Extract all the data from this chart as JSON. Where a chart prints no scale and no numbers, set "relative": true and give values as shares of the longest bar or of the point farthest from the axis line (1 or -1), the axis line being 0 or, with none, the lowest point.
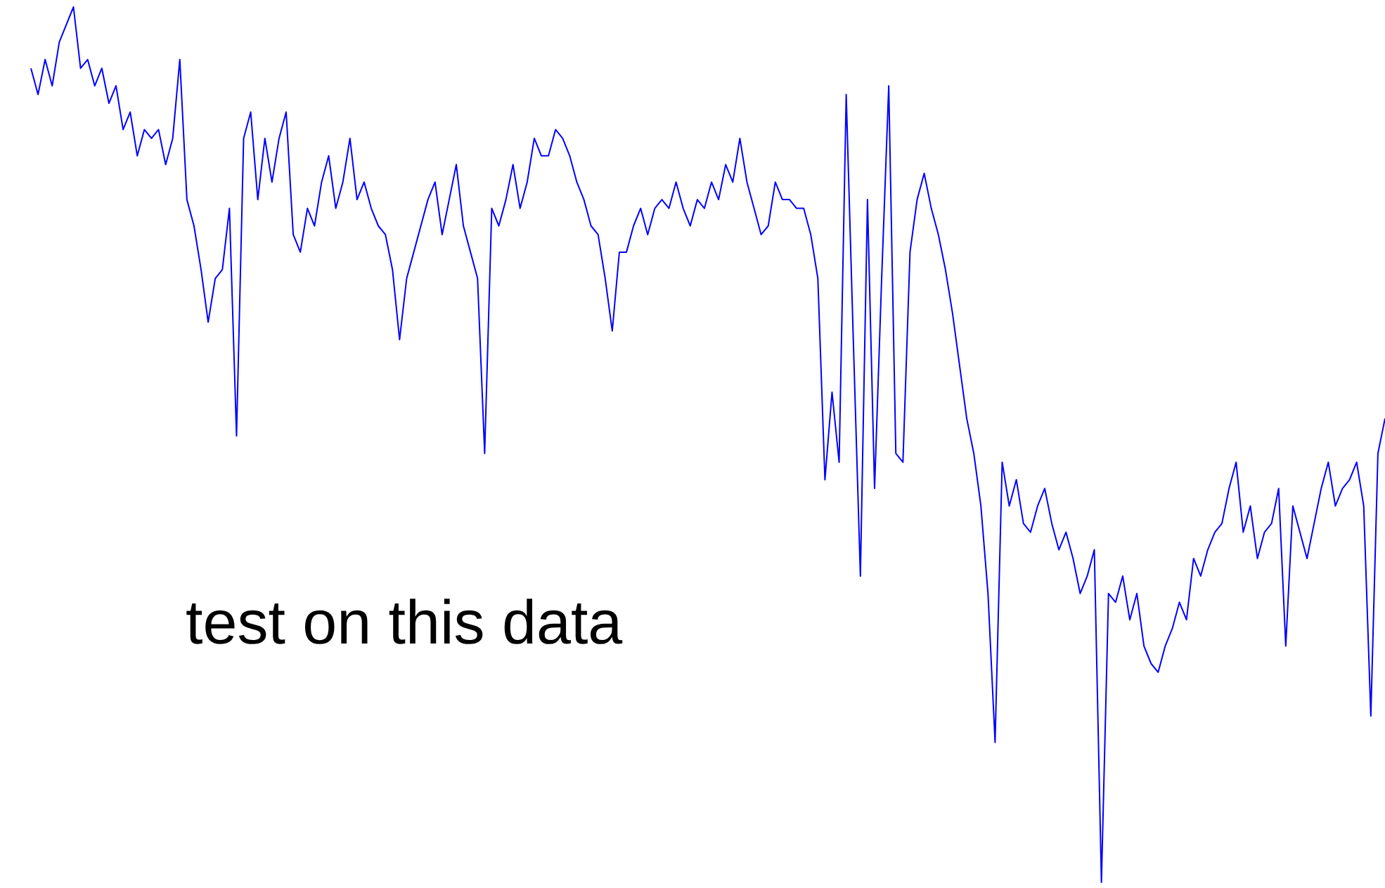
{
  "chart_data": {
    "type": "line",
    "relative": true,
    "annotations": [
      "test on this data"
    ],
    "categories": [
      null,
      null,
      null,
      null,
      null,
      null,
      null,
      null,
      null,
      null,
      null,
      null,
      null,
      null,
      null,
      null,
      null,
      null,
      null,
      null,
      null,
      null,
      null,
      null,
      null,
      null,
      null,
      null,
      null,
      null,
      null,
      null,
      null,
      null,
      null,
      null,
      null,
      null,
      null,
      null,
      null,
      null,
      null,
      null,
      null,
      null,
      null,
      null,
      null,
      null,
      null,
      null,
      null,
      null,
      null,
      null,
      null,
      null,
      null,
      null,
      null,
      null,
      null,
      null,
      null,
      null,
      null,
      null,
      null,
      null,
      null,
      null,
      null,
      null,
      null,
      null,
      null,
      null,
      null,
      null,
      null,
      null,
      null,
      null,
      null,
      null,
      null,
      null,
      null,
      null,
      null,
      null,
      null,
      null,
      null,
      null,
      null,
      null,
      null,
      null,
      null,
      null,
      null,
      null,
      null,
      null,
      null,
      null,
      null,
      null,
      null,
      null,
      null,
      null,
      null,
      null,
      null,
      null,
      null,
      null,
      null,
      null,
      null,
      null,
      null,
      null,
      null,
      null,
      null,
      null,
      null,
      null,
      null,
      null,
      null,
      null,
      null,
      null,
      null,
      null,
      null,
      null,
      null,
      null,
      null,
      null,
      null,
      null,
      null,
      null,
      null,
      null,
      null,
      null,
      null,
      null,
      null,
      null,
      null,
      null,
      null,
      null,
      null,
      null,
      null,
      null,
      null,
      null,
      null,
      null,
      null,
      null,
      null,
      null,
      null,
      null,
      null,
      null,
      null,
      null,
      null,
      null,
      null,
      null,
      null,
      null,
      null,
      null,
      null,
      null,
      null,
      null
    ],
    "series": [
      {
        "color": "#0000ff",
        "values": [
          0.93,
          0.9,
          0.94,
          0.91,
          0.96,
          0.98,
          1.0,
          0.93,
          0.94,
          0.91,
          0.93,
          0.89,
          0.91,
          0.86,
          0.88,
          0.83,
          0.86,
          0.85,
          0.86,
          0.82,
          0.85,
          0.94,
          0.78,
          0.75,
          0.7,
          0.64,
          0.69,
          0.7,
          0.77,
          0.51,
          0.85,
          0.88,
          0.78,
          0.85,
          0.8,
          0.85,
          0.88,
          0.74,
          0.72,
          0.77,
          0.75,
          0.8,
          0.83,
          0.77,
          0.8,
          0.85,
          0.78,
          0.8,
          0.77,
          0.75,
          0.74,
          0.7,
          0.62,
          0.69,
          0.72,
          0.75,
          0.78,
          0.8,
          0.74,
          0.78,
          0.82,
          0.75,
          0.72,
          0.69,
          0.49,
          0.77,
          0.75,
          0.78,
          0.82,
          0.77,
          0.8,
          0.85,
          0.83,
          0.83,
          0.86,
          0.85,
          0.83,
          0.8,
          0.78,
          0.75,
          0.74,
          0.69,
          0.63,
          0.72,
          0.72,
          0.75,
          0.77,
          0.74,
          0.77,
          0.78,
          0.77,
          0.8,
          0.77,
          0.75,
          0.78,
          0.77,
          0.8,
          0.78,
          0.82,
          0.8,
          0.85,
          0.8,
          0.77,
          0.74,
          0.75,
          0.8,
          0.78,
          0.78,
          0.77,
          0.77,
          0.74,
          0.69,
          0.46,
          0.56,
          0.48,
          0.9,
          0.62,
          0.35,
          0.78,
          0.45,
          0.69,
          0.91,
          0.49,
          0.48,
          0.72,
          0.78,
          0.81,
          0.77,
          0.74,
          0.7,
          0.65,
          0.59,
          0.53,
          0.49,
          0.43,
          0.33,
          0.16,
          0.48,
          0.43,
          0.46,
          0.41,
          0.4,
          0.43,
          0.45,
          0.41,
          0.38,
          0.4,
          0.37,
          0.33,
          0.35,
          0.38,
          0,
          0.33,
          0.32,
          0.35,
          0.3,
          0.33,
          0.27,
          0.25,
          0.24,
          0.27,
          0.29,
          0.32,
          0.3,
          0.37,
          0.35,
          0.38,
          0.4,
          0.41,
          0.45,
          0.48,
          0.4,
          0.43,
          0.37,
          0.4,
          0.41,
          0.45,
          0.27,
          0.43,
          0.4,
          0.37,
          0.41,
          0.45,
          0.48,
          0.43,
          0.45,
          0.46,
          0.48,
          0.43,
          0.19,
          0.49,
          0.53
        ]
      }
    ]
  }
}
